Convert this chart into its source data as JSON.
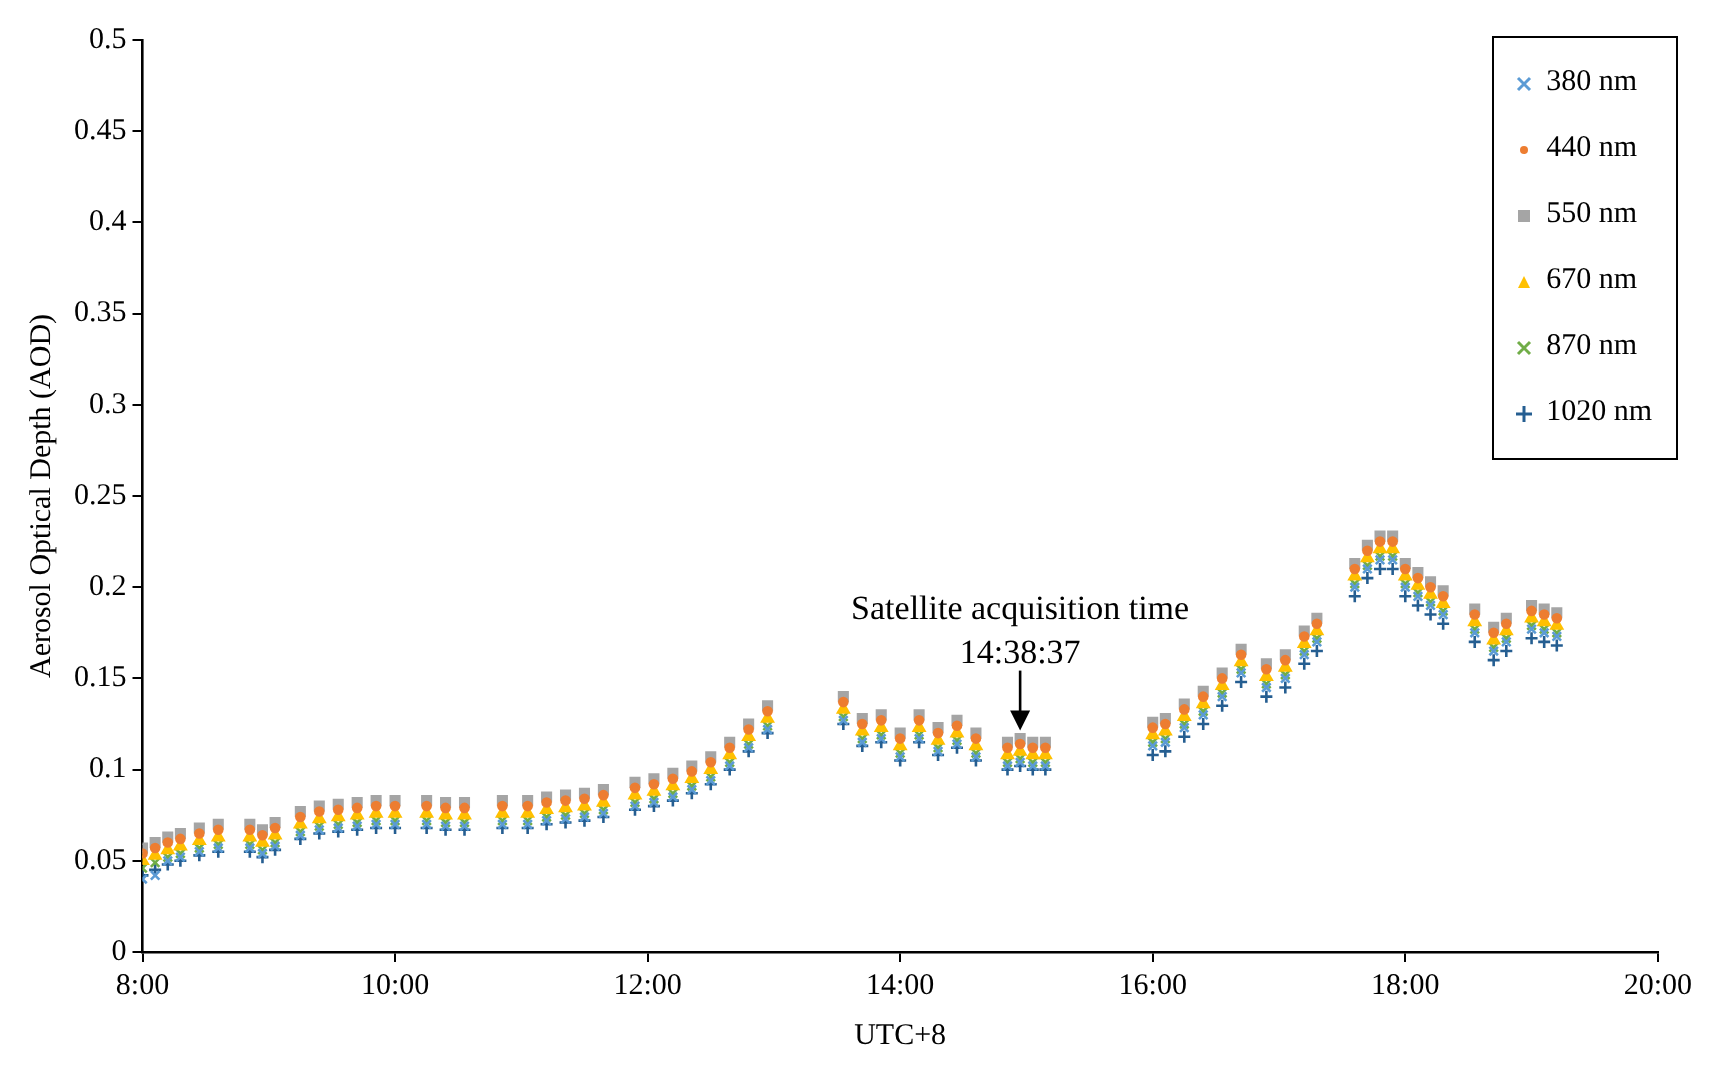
{
  "chart_data": {
    "type": "scatter",
    "xlabel": "UTC+8",
    "ylabel": "Aerosol Optical Depth (AOD)",
    "annotations": [
      {
        "text": "Satellite acquisition time\n14:38:37",
        "x": 14.95,
        "y": 0.117
      }
    ],
    "x": [
      8.0,
      8.1,
      8.2,
      8.3,
      8.45,
      8.6,
      8.85,
      8.95,
      9.05,
      9.25,
      9.4,
      9.55,
      9.7,
      9.85,
      10.0,
      10.25,
      10.4,
      10.55,
      10.85,
      11.05,
      11.2,
      11.35,
      11.5,
      11.65,
      11.9,
      12.05,
      12.2,
      12.35,
      12.5,
      12.65,
      12.8,
      12.95,
      13.55,
      13.7,
      13.85,
      14.0,
      14.15,
      14.3,
      14.45,
      14.6,
      14.85,
      14.95,
      15.05,
      15.15,
      16.0,
      16.1,
      16.25,
      16.4,
      16.55,
      16.7,
      16.9,
      17.05,
      17.2,
      17.3,
      17.6,
      17.7,
      17.8,
      17.9,
      18.0,
      18.1,
      18.2,
      18.3,
      18.55,
      18.7,
      18.8,
      19.0,
      19.1,
      19.2
    ],
    "series": [
      {
        "name": "380 nm",
        "color": "#5b9bd5",
        "marker": "cross",
        "values": [
          0.04,
          0.042,
          0.05,
          0.052,
          0.055,
          0.057,
          0.057,
          0.054,
          0.058,
          0.064,
          0.067,
          0.068,
          0.069,
          0.07,
          0.07,
          0.07,
          0.069,
          0.069,
          0.07,
          0.07,
          0.072,
          0.073,
          0.074,
          0.076,
          0.08,
          0.082,
          0.085,
          0.089,
          0.094,
          0.102,
          0.112,
          0.122,
          0.127,
          0.115,
          0.117,
          0.107,
          0.117,
          0.11,
          0.114,
          0.107,
          0.102,
          0.104,
          0.102,
          0.102,
          0.113,
          0.115,
          0.123,
          0.13,
          0.14,
          0.153,
          0.145,
          0.15,
          0.163,
          0.17,
          0.2,
          0.21,
          0.215,
          0.215,
          0.2,
          0.195,
          0.19,
          0.185,
          0.175,
          0.165,
          0.17,
          0.177,
          0.175,
          0.173
        ]
      },
      {
        "name": "440 nm",
        "color": "#ed7d31",
        "marker": "circle",
        "values": [
          0.054,
          0.057,
          0.06,
          0.062,
          0.065,
          0.067,
          0.067,
          0.064,
          0.068,
          0.074,
          0.077,
          0.078,
          0.079,
          0.08,
          0.08,
          0.08,
          0.079,
          0.079,
          0.08,
          0.08,
          0.082,
          0.083,
          0.084,
          0.086,
          0.09,
          0.092,
          0.095,
          0.099,
          0.104,
          0.112,
          0.122,
          0.132,
          0.137,
          0.125,
          0.127,
          0.117,
          0.127,
          0.12,
          0.124,
          0.117,
          0.112,
          0.114,
          0.112,
          0.112,
          0.123,
          0.125,
          0.133,
          0.14,
          0.15,
          0.163,
          0.155,
          0.16,
          0.173,
          0.18,
          0.21,
          0.22,
          0.225,
          0.225,
          0.21,
          0.205,
          0.2,
          0.195,
          0.185,
          0.175,
          0.18,
          0.187,
          0.185,
          0.183
        ]
      },
      {
        "name": "550 nm",
        "color": "#a5a5a5",
        "marker": "square",
        "values": [
          0.057,
          0.06,
          0.063,
          0.065,
          0.068,
          0.07,
          0.07,
          0.067,
          0.071,
          0.077,
          0.08,
          0.081,
          0.082,
          0.083,
          0.083,
          0.083,
          0.082,
          0.082,
          0.083,
          0.083,
          0.085,
          0.086,
          0.087,
          0.089,
          0.093,
          0.095,
          0.098,
          0.102,
          0.107,
          0.115,
          0.125,
          0.135,
          0.14,
          0.128,
          0.13,
          0.12,
          0.13,
          0.123,
          0.127,
          0.12,
          0.115,
          0.117,
          0.115,
          0.115,
          0.126,
          0.128,
          0.136,
          0.143,
          0.153,
          0.166,
          0.158,
          0.163,
          0.176,
          0.183,
          0.213,
          0.223,
          0.228,
          0.228,
          0.213,
          0.208,
          0.203,
          0.198,
          0.188,
          0.178,
          0.183,
          0.19,
          0.188,
          0.186
        ]
      },
      {
        "name": "670 nm",
        "color": "#ffc000",
        "marker": "triangle",
        "values": [
          0.05,
          0.053,
          0.056,
          0.058,
          0.061,
          0.063,
          0.063,
          0.06,
          0.064,
          0.07,
          0.073,
          0.074,
          0.075,
          0.076,
          0.076,
          0.076,
          0.075,
          0.075,
          0.076,
          0.076,
          0.078,
          0.079,
          0.08,
          0.082,
          0.086,
          0.088,
          0.091,
          0.095,
          0.1,
          0.108,
          0.118,
          0.128,
          0.133,
          0.121,
          0.123,
          0.113,
          0.123,
          0.116,
          0.12,
          0.113,
          0.108,
          0.11,
          0.108,
          0.108,
          0.119,
          0.121,
          0.129,
          0.136,
          0.146,
          0.159,
          0.151,
          0.156,
          0.169,
          0.176,
          0.206,
          0.216,
          0.221,
          0.221,
          0.206,
          0.201,
          0.196,
          0.191,
          0.181,
          0.171,
          0.176,
          0.183,
          0.181,
          0.179
        ]
      },
      {
        "name": "870 nm",
        "color": "#70ad47",
        "marker": "cross",
        "values": [
          0.046,
          0.049,
          0.052,
          0.054,
          0.057,
          0.059,
          0.059,
          0.056,
          0.06,
          0.066,
          0.069,
          0.07,
          0.071,
          0.072,
          0.072,
          0.072,
          0.071,
          0.071,
          0.072,
          0.072,
          0.074,
          0.075,
          0.076,
          0.078,
          0.082,
          0.084,
          0.087,
          0.091,
          0.096,
          0.104,
          0.114,
          0.124,
          0.129,
          0.117,
          0.119,
          0.109,
          0.119,
          0.112,
          0.116,
          0.109,
          0.104,
          0.106,
          0.104,
          0.104,
          0.115,
          0.117,
          0.125,
          0.132,
          0.142,
          0.155,
          0.147,
          0.152,
          0.165,
          0.172,
          0.202,
          0.212,
          0.217,
          0.217,
          0.202,
          0.197,
          0.192,
          0.187,
          0.177,
          0.167,
          0.172,
          0.179,
          0.177,
          0.175
        ]
      },
      {
        "name": "1020 nm",
        "color": "#255e91",
        "marker": "plus",
        "values": [
          0.042,
          0.045,
          0.048,
          0.05,
          0.053,
          0.055,
          0.055,
          0.052,
          0.056,
          0.062,
          0.065,
          0.066,
          0.067,
          0.068,
          0.068,
          0.068,
          0.067,
          0.067,
          0.068,
          0.068,
          0.07,
          0.071,
          0.072,
          0.074,
          0.078,
          0.08,
          0.083,
          0.087,
          0.092,
          0.1,
          0.11,
          0.12,
          0.125,
          0.113,
          0.115,
          0.105,
          0.115,
          0.108,
          0.112,
          0.105,
          0.1,
          0.102,
          0.1,
          0.1,
          0.108,
          0.11,
          0.118,
          0.125,
          0.135,
          0.148,
          0.14,
          0.145,
          0.158,
          0.165,
          0.195,
          0.205,
          0.21,
          0.21,
          0.195,
          0.19,
          0.185,
          0.18,
          0.17,
          0.16,
          0.165,
          0.172,
          0.17,
          0.168
        ]
      }
    ],
    "xlim": [
      8,
      20
    ],
    "xticks": [
      {
        "value": 8,
        "label": "8:00"
      },
      {
        "value": 10,
        "label": "10:00"
      },
      {
        "value": 12,
        "label": "12:00"
      },
      {
        "value": 14,
        "label": "14:00"
      },
      {
        "value": 16,
        "label": "16:00"
      },
      {
        "value": 18,
        "label": "18:00"
      },
      {
        "value": 20,
        "label": "20:00"
      }
    ],
    "ylim": [
      0,
      0.5
    ],
    "yticks": [
      0,
      0.05,
      0.1,
      0.15,
      0.2,
      0.25,
      0.3,
      0.35,
      0.4,
      0.45,
      0.5
    ],
    "grid": false,
    "legend": "top right"
  }
}
